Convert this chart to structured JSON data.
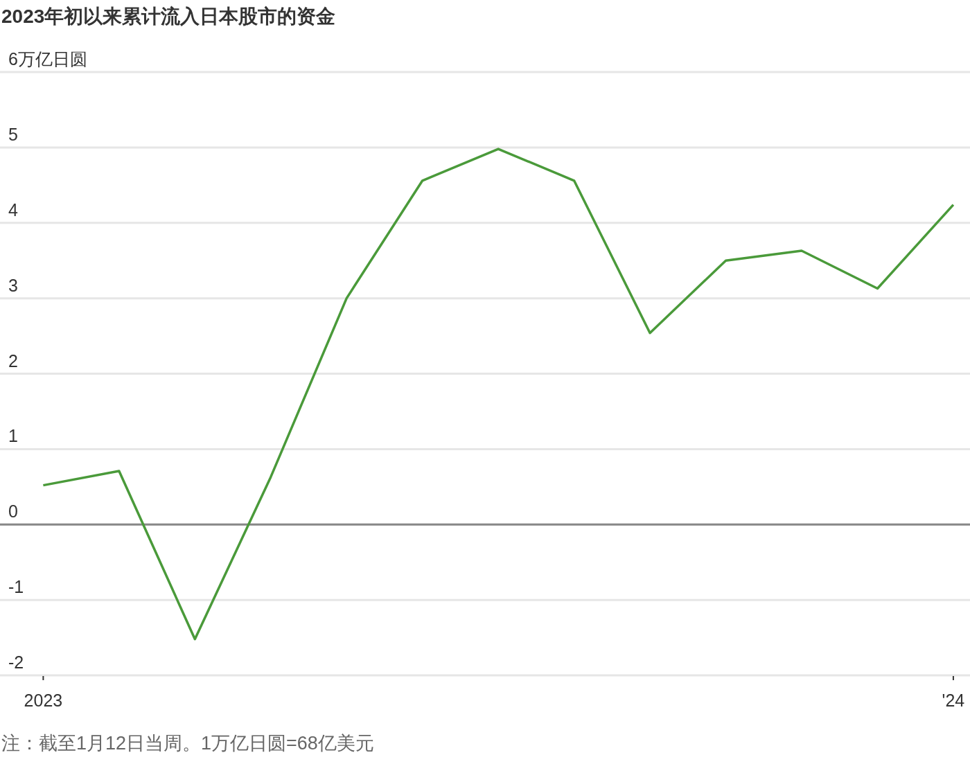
{
  "chart_data": {
    "type": "line",
    "title": "2023年初以来累计流入日本股市的资金",
    "categories": [
      "2023",
      null,
      null,
      null,
      null,
      null,
      null,
      null,
      null,
      null,
      null,
      null,
      "'24"
    ],
    "series": [
      {
        "color": "#4a9a3a",
        "values": [
          0.52,
          0.71,
          -1.52,
          0.63,
          3.0,
          4.56,
          4.98,
          4.56,
          2.54,
          3.5,
          3.63,
          3.13,
          4.24
        ]
      }
    ],
    "ylim": [
      -2,
      6
    ],
    "yticks": [
      -2,
      -1,
      0,
      1,
      2,
      3,
      4,
      5,
      {
        "value": 6,
        "label": "6万亿日圆"
      }
    ],
    "ref_lines": [
      {
        "axis": "y",
        "value": 0,
        "color": "#888888"
      }
    ],
    "grid": "y",
    "marker": "none",
    "line_style": "solid",
    "annotations": [
      "注：截至1月12日当周。1万亿日圆=68亿美元"
    ]
  }
}
